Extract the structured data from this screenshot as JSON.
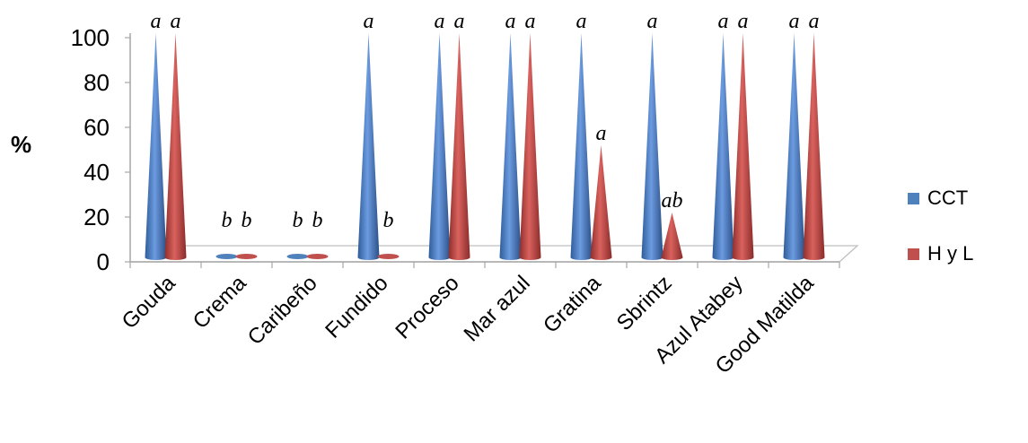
{
  "chart_data": {
    "type": "bar",
    "ylabel": "%",
    "ylim": [
      0,
      100
    ],
    "yticks": [
      0,
      20,
      40,
      60,
      80,
      100
    ],
    "categories": [
      "Gouda",
      "Crema",
      "Caribeño",
      "Fundido",
      "Proceso",
      "Mar azul",
      "Gratina",
      "Sbrintz",
      "Azul Atabey",
      "Good Matilda"
    ],
    "series": [
      {
        "name": "CCT",
        "color": "#4F81BD",
        "values": [
          100,
          0,
          0,
          100,
          100,
          100,
          100,
          100,
          100,
          100
        ],
        "labels": [
          "a",
          "b",
          "b",
          "a",
          "a",
          "a",
          "a",
          "a",
          "a",
          "a"
        ]
      },
      {
        "name": "H y L",
        "color": "#C0504D",
        "values": [
          100,
          0,
          0,
          0,
          100,
          100,
          50,
          20,
          100,
          100
        ],
        "labels": [
          "a",
          "b",
          "b",
          "b",
          "a",
          "a",
          "a",
          "ab",
          "a",
          "a"
        ]
      }
    ],
    "legend": "right",
    "grid": false
  }
}
